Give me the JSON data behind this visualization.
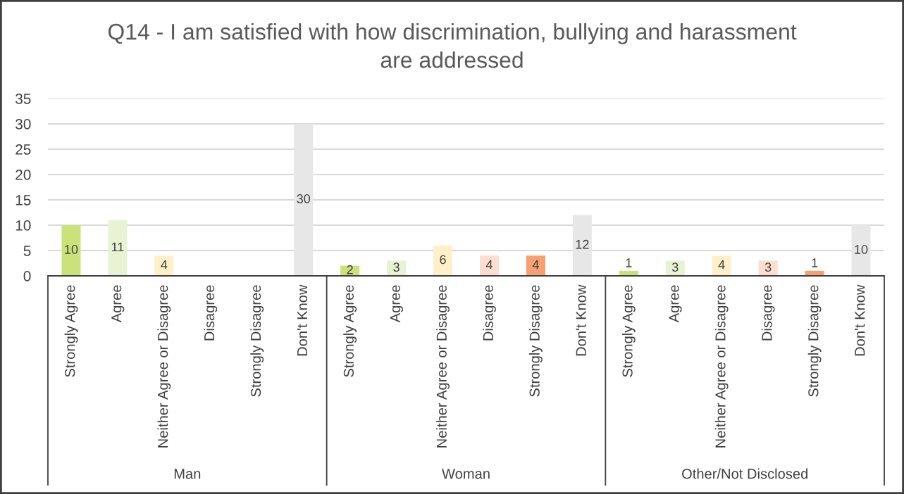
{
  "chart_data": {
    "type": "bar",
    "title": "Q14 - I am satisfied with how discrimination, bullying and harassment are addressed",
    "categories": [
      "Strongly Agree",
      "Agree",
      "Neither Agree or Disagree",
      "Disagree",
      "Strongly Disagree",
      "Don't Know",
      "Strongly Agree",
      "Agree",
      "Neither Agree or Disagree",
      "Disagree",
      "Strongly Disagree",
      "Don't Know",
      "Strongly Agree",
      "Agree",
      "Neither Agree or Disagree",
      "Disagree",
      "Strongly Disagree",
      "Don't Know"
    ],
    "series": [
      {
        "values": [
          10,
          11,
          4,
          null,
          null,
          30,
          2,
          3,
          6,
          4,
          4,
          12,
          1,
          3,
          4,
          3,
          1,
          10
        ],
        "colors": [
          "#c9e27a",
          "#e8f3d3",
          "#fff0c9",
          null,
          null,
          "#e7e7e7",
          "#c9e27a",
          "#e8f3d3",
          "#fff0c9",
          "#fcddd0",
          "#f7a072",
          "#e7e7e7",
          "#c9e27a",
          "#e8f3d3",
          "#fff0c9",
          "#fcddd0",
          "#f7a072",
          "#e7e7e7"
        ]
      }
    ],
    "annotations": [
      "Man",
      "Woman",
      "Other/Not Disclosed"
    ],
    "ylim": [
      0,
      35
    ],
    "yticks": [
      0,
      5,
      10,
      15,
      20,
      25,
      30,
      35
    ],
    "grid": "y",
    "data_labels": true
  }
}
